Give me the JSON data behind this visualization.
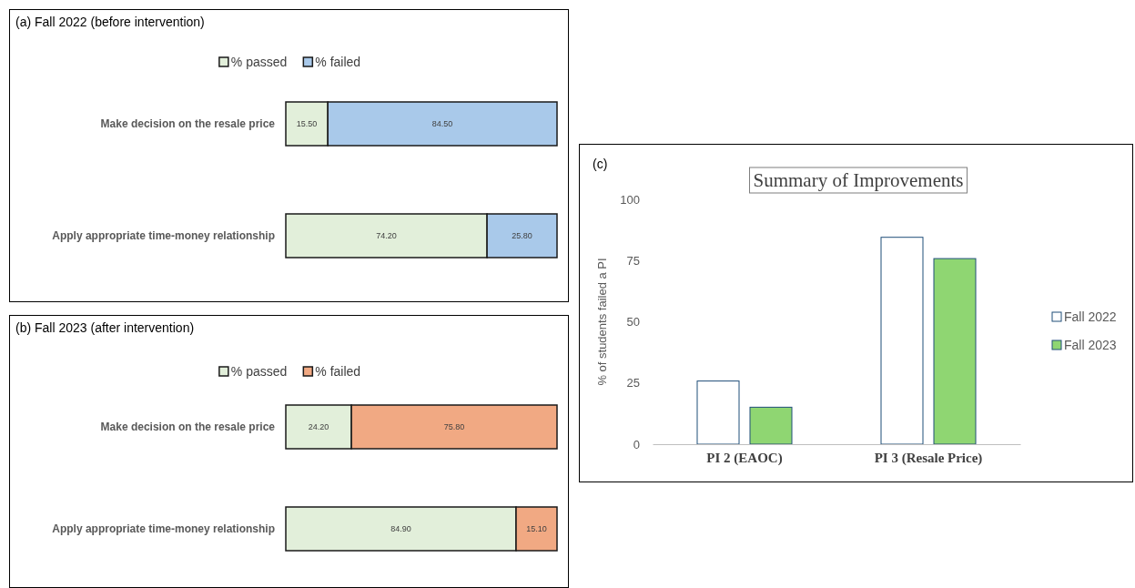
{
  "chart_data": [
    {
      "type": "bar",
      "orientation": "horizontal",
      "stacked": true,
      "title": "(a) Fall 2022 (before intervention)",
      "categories": [
        "Make decision on the resale price",
        "Apply appropriate time-money relationship"
      ],
      "legend": "top",
      "tick_labels": "y",
      "series": [
        {
          "name": "% passed",
          "color": "#e2efda",
          "values": [
            15.5,
            74.2
          ],
          "value_labels": [
            "15.50",
            "74.20"
          ]
        },
        {
          "name": "% failed",
          "color": "#a9c9ea",
          "values": [
            84.5,
            25.8
          ],
          "value_labels": [
            "84.50",
            "25.80"
          ]
        }
      ]
    },
    {
      "type": "bar",
      "orientation": "horizontal",
      "stacked": true,
      "title": "(b) Fall 2023 (after intervention)",
      "categories": [
        "Make decision on the resale price",
        "Apply appropriate time-money relationship"
      ],
      "legend": "top",
      "tick_labels": "y",
      "series": [
        {
          "name": "% passed",
          "color": "#e2efda",
          "values": [
            24.2,
            84.9
          ],
          "value_labels": [
            "24.20",
            "84.90"
          ]
        },
        {
          "name": "% failed",
          "color": "#f1a983",
          "values": [
            75.8,
            15.1
          ],
          "value_labels": [
            "75.80",
            "15.10"
          ]
        }
      ]
    },
    {
      "type": "bar",
      "title": "Summary of Improvements",
      "annotations": [
        "(c)"
      ],
      "ylabel": "% of students failed a PI",
      "categories": [
        "PI 2 (EAOC)",
        "PI 3 (Resale Price)"
      ],
      "ylim": [
        0,
        100
      ],
      "yticks": [
        0,
        25,
        50,
        75,
        100
      ],
      "legend": "right",
      "series": [
        {
          "name": "Fall 2022",
          "color": "#ffffff",
          "values": [
            25.8,
            84.5
          ]
        },
        {
          "name": "Fall 2023",
          "color": "#8fd672",
          "values": [
            15.1,
            75.8
          ]
        }
      ]
    }
  ]
}
